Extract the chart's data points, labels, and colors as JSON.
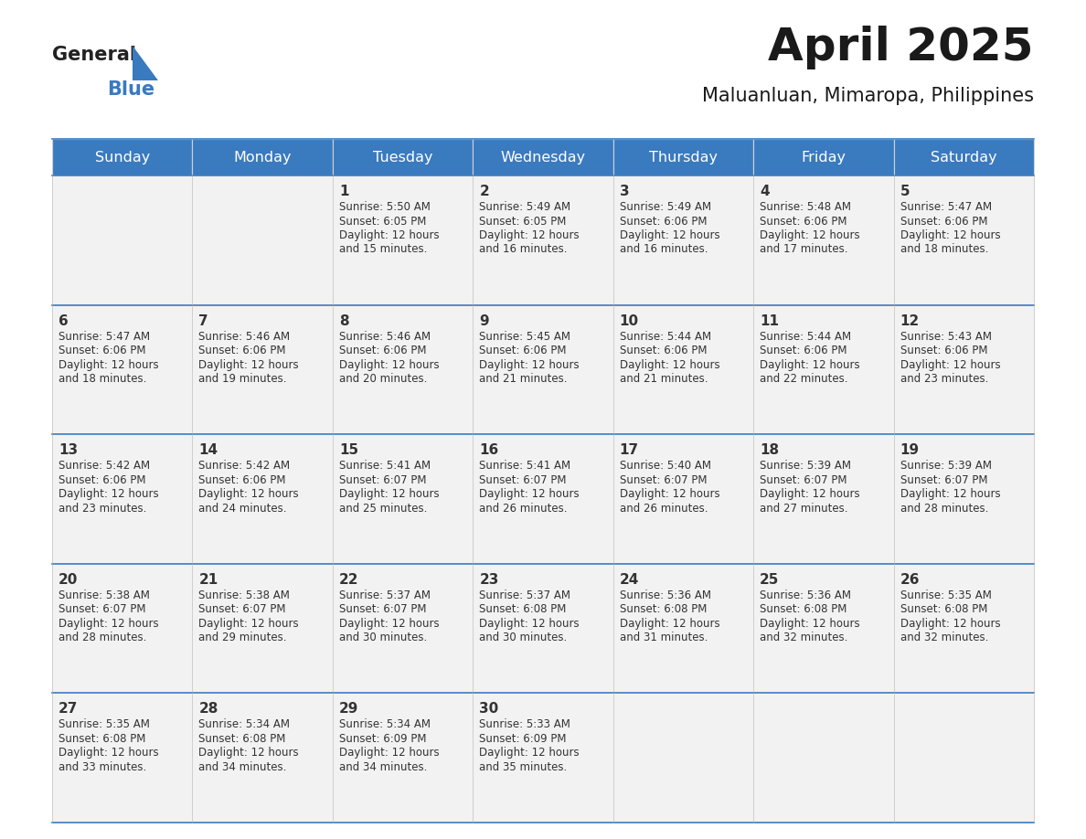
{
  "title": "April 2025",
  "subtitle": "Maluanluan, Mimaropa, Philippines",
  "days_of_week": [
    "Sunday",
    "Monday",
    "Tuesday",
    "Wednesday",
    "Thursday",
    "Friday",
    "Saturday"
  ],
  "header_bg": "#3a7abf",
  "header_text": "#ffffff",
  "cell_bg": "#f2f2f2",
  "cell_border": "#3a7abf",
  "text_color": "#333333",
  "calendar": [
    [
      null,
      null,
      {
        "day": "1",
        "sunrise": "5:50 AM",
        "sunset": "6:05 PM",
        "daylight_hrs": "12 hours",
        "daylight_min": "and 15 minutes."
      },
      {
        "day": "2",
        "sunrise": "5:49 AM",
        "sunset": "6:05 PM",
        "daylight_hrs": "12 hours",
        "daylight_min": "and 16 minutes."
      },
      {
        "day": "3",
        "sunrise": "5:49 AM",
        "sunset": "6:06 PM",
        "daylight_hrs": "12 hours",
        "daylight_min": "and 16 minutes."
      },
      {
        "day": "4",
        "sunrise": "5:48 AM",
        "sunset": "6:06 PM",
        "daylight_hrs": "12 hours",
        "daylight_min": "and 17 minutes."
      },
      {
        "day": "5",
        "sunrise": "5:47 AM",
        "sunset": "6:06 PM",
        "daylight_hrs": "12 hours",
        "daylight_min": "and 18 minutes."
      }
    ],
    [
      {
        "day": "6",
        "sunrise": "5:47 AM",
        "sunset": "6:06 PM",
        "daylight_hrs": "12 hours",
        "daylight_min": "and 18 minutes."
      },
      {
        "day": "7",
        "sunrise": "5:46 AM",
        "sunset": "6:06 PM",
        "daylight_hrs": "12 hours",
        "daylight_min": "and 19 minutes."
      },
      {
        "day": "8",
        "sunrise": "5:46 AM",
        "sunset": "6:06 PM",
        "daylight_hrs": "12 hours",
        "daylight_min": "and 20 minutes."
      },
      {
        "day": "9",
        "sunrise": "5:45 AM",
        "sunset": "6:06 PM",
        "daylight_hrs": "12 hours",
        "daylight_min": "and 21 minutes."
      },
      {
        "day": "10",
        "sunrise": "5:44 AM",
        "sunset": "6:06 PM",
        "daylight_hrs": "12 hours",
        "daylight_min": "and 21 minutes."
      },
      {
        "day": "11",
        "sunrise": "5:44 AM",
        "sunset": "6:06 PM",
        "daylight_hrs": "12 hours",
        "daylight_min": "and 22 minutes."
      },
      {
        "day": "12",
        "sunrise": "5:43 AM",
        "sunset": "6:06 PM",
        "daylight_hrs": "12 hours",
        "daylight_min": "and 23 minutes."
      }
    ],
    [
      {
        "day": "13",
        "sunrise": "5:42 AM",
        "sunset": "6:06 PM",
        "daylight_hrs": "12 hours",
        "daylight_min": "and 23 minutes."
      },
      {
        "day": "14",
        "sunrise": "5:42 AM",
        "sunset": "6:06 PM",
        "daylight_hrs": "12 hours",
        "daylight_min": "and 24 minutes."
      },
      {
        "day": "15",
        "sunrise": "5:41 AM",
        "sunset": "6:07 PM",
        "daylight_hrs": "12 hours",
        "daylight_min": "and 25 minutes."
      },
      {
        "day": "16",
        "sunrise": "5:41 AM",
        "sunset": "6:07 PM",
        "daylight_hrs": "12 hours",
        "daylight_min": "and 26 minutes."
      },
      {
        "day": "17",
        "sunrise": "5:40 AM",
        "sunset": "6:07 PM",
        "daylight_hrs": "12 hours",
        "daylight_min": "and 26 minutes."
      },
      {
        "day": "18",
        "sunrise": "5:39 AM",
        "sunset": "6:07 PM",
        "daylight_hrs": "12 hours",
        "daylight_min": "and 27 minutes."
      },
      {
        "day": "19",
        "sunrise": "5:39 AM",
        "sunset": "6:07 PM",
        "daylight_hrs": "12 hours",
        "daylight_min": "and 28 minutes."
      }
    ],
    [
      {
        "day": "20",
        "sunrise": "5:38 AM",
        "sunset": "6:07 PM",
        "daylight_hrs": "12 hours",
        "daylight_min": "and 28 minutes."
      },
      {
        "day": "21",
        "sunrise": "5:38 AM",
        "sunset": "6:07 PM",
        "daylight_hrs": "12 hours",
        "daylight_min": "and 29 minutes."
      },
      {
        "day": "22",
        "sunrise": "5:37 AM",
        "sunset": "6:07 PM",
        "daylight_hrs": "12 hours",
        "daylight_min": "and 30 minutes."
      },
      {
        "day": "23",
        "sunrise": "5:37 AM",
        "sunset": "6:08 PM",
        "daylight_hrs": "12 hours",
        "daylight_min": "and 30 minutes."
      },
      {
        "day": "24",
        "sunrise": "5:36 AM",
        "sunset": "6:08 PM",
        "daylight_hrs": "12 hours",
        "daylight_min": "and 31 minutes."
      },
      {
        "day": "25",
        "sunrise": "5:36 AM",
        "sunset": "6:08 PM",
        "daylight_hrs": "12 hours",
        "daylight_min": "and 32 minutes."
      },
      {
        "day": "26",
        "sunrise": "5:35 AM",
        "sunset": "6:08 PM",
        "daylight_hrs": "12 hours",
        "daylight_min": "and 32 minutes."
      }
    ],
    [
      {
        "day": "27",
        "sunrise": "5:35 AM",
        "sunset": "6:08 PM",
        "daylight_hrs": "12 hours",
        "daylight_min": "and 33 minutes."
      },
      {
        "day": "28",
        "sunrise": "5:34 AM",
        "sunset": "6:08 PM",
        "daylight_hrs": "12 hours",
        "daylight_min": "and 34 minutes."
      },
      {
        "day": "29",
        "sunrise": "5:34 AM",
        "sunset": "6:09 PM",
        "daylight_hrs": "12 hours",
        "daylight_min": "and 34 minutes."
      },
      {
        "day": "30",
        "sunrise": "5:33 AM",
        "sunset": "6:09 PM",
        "daylight_hrs": "12 hours",
        "daylight_min": "and 35 minutes."
      },
      null,
      null,
      null
    ]
  ]
}
